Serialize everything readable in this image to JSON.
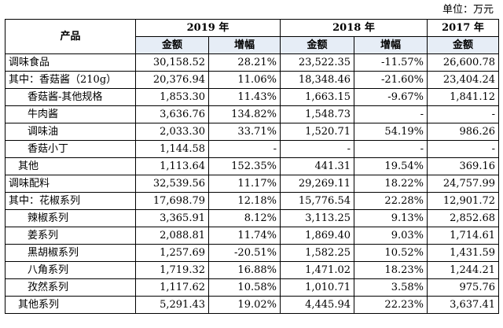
{
  "unit_label": "单位：万元",
  "header": {
    "product": "产品",
    "years": [
      "2019 年",
      "2018 年",
      "2017 年"
    ],
    "amount": "金额",
    "growth": "增幅"
  },
  "rows": [
    {
      "label": "调味食品",
      "indent": 0,
      "a2019": "30,158.52",
      "g2019": "28.21%",
      "a2018": "23,522.35",
      "g2018": "-11.57%",
      "a2017": "26,600.78"
    },
    {
      "label": "其中：香菇酱（210g）",
      "indent": 0,
      "a2019": "20,376.94",
      "g2019": "11.06%",
      "a2018": "18,348.46",
      "g2018": "-21.60%",
      "a2017": "23,404.24"
    },
    {
      "label": "香菇酱-其他规格",
      "indent": 2,
      "a2019": "1,853.30",
      "g2019": "11.43%",
      "a2018": "1,663.15",
      "g2018": "-9.67%",
      "a2017": "1,841.12"
    },
    {
      "label": "牛肉酱",
      "indent": 2,
      "a2019": "3,636.76",
      "g2019": "134.82%",
      "a2018": "1,548.73",
      "g2018": "-",
      "a2017": "-"
    },
    {
      "label": "调味油",
      "indent": 2,
      "a2019": "2,033.30",
      "g2019": "33.71%",
      "a2018": "1,520.71",
      "g2018": "54.19%",
      "a2017": "986.26"
    },
    {
      "label": "香菇小丁",
      "indent": 2,
      "a2019": "1,144.58",
      "g2019": "-",
      "a2018": "-",
      "g2018": "-",
      "a2017": "-"
    },
    {
      "label": "其他",
      "indent": 1,
      "a2019": "1,113.64",
      "g2019": "152.35%",
      "a2018": "441.31",
      "g2018": "19.54%",
      "a2017": "369.16"
    },
    {
      "label": "调味配料",
      "indent": 0,
      "a2019": "32,539.56",
      "g2019": "11.17%",
      "a2018": "29,269.11",
      "g2018": "18.22%",
      "a2017": "24,757.99"
    },
    {
      "label": "其中：花椒系列",
      "indent": 0,
      "a2019": "17,698.79",
      "g2019": "12.18%",
      "a2018": "15,776.54",
      "g2018": "22.28%",
      "a2017": "12,901.72"
    },
    {
      "label": "辣椒系列",
      "indent": 2,
      "a2019": "3,365.91",
      "g2019": "8.12%",
      "a2018": "3,113.25",
      "g2018": "9.13%",
      "a2017": "2,852.68"
    },
    {
      "label": "姜系列",
      "indent": 2,
      "a2019": "2,088.81",
      "g2019": "11.74%",
      "a2018": "1,869.40",
      "g2018": "9.03%",
      "a2017": "1,714.61"
    },
    {
      "label": "黑胡椒系列",
      "indent": 2,
      "a2019": "1,257.69",
      "g2019": "-20.51%",
      "a2018": "1,582.25",
      "g2018": "10.52%",
      "a2017": "1,431.59"
    },
    {
      "label": "八角系列",
      "indent": 2,
      "a2019": "1,719.32",
      "g2019": "16.88%",
      "a2018": "1,471.02",
      "g2018": "18.23%",
      "a2017": "1,244.21"
    },
    {
      "label": "孜然系列",
      "indent": 2,
      "a2019": "1,117.62",
      "g2019": "10.58%",
      "a2018": "1,010.71",
      "g2018": "3.58%",
      "a2017": "975.76"
    },
    {
      "label": "其他系列",
      "indent": 1,
      "a2019": "5,291.43",
      "g2019": "19.02%",
      "a2018": "4,445.94",
      "g2018": "22.23%",
      "a2017": "3,637.41"
    }
  ]
}
